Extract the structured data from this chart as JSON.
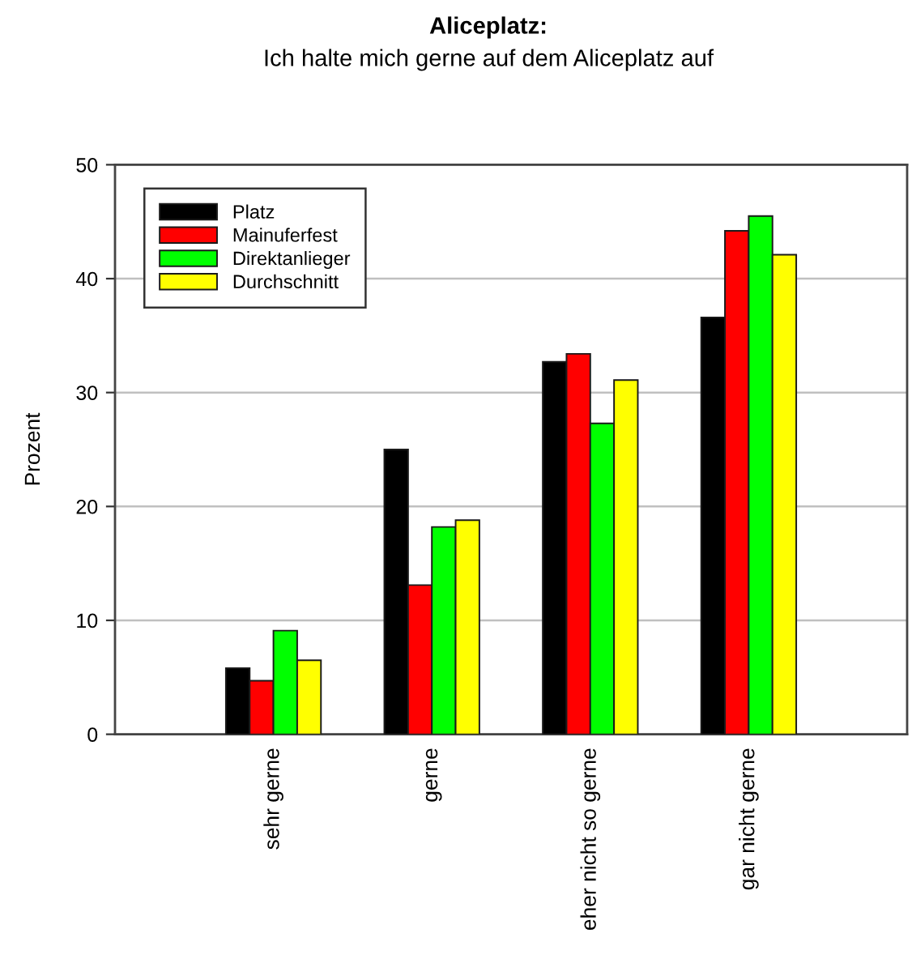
{
  "chart_data": {
    "type": "bar",
    "title": "Aliceplatz:",
    "subtitle": "Ich halte mich gerne auf dem Aliceplatz auf",
    "ylabel": "Prozent",
    "categories": [
      "sehr gerne",
      "gerne",
      "eher nicht so gerne",
      "gar nicht gerne"
    ],
    "series": [
      {
        "name": "Platz",
        "color": "#000000",
        "values": [
          5.8,
          25.0,
          32.7,
          36.6
        ]
      },
      {
        "name": "Mainuferfest",
        "color": "#ff0000",
        "values": [
          4.7,
          13.1,
          33.4,
          44.2
        ]
      },
      {
        "name": "Direktanlieger",
        "color": "#00ff00",
        "values": [
          9.1,
          18.2,
          27.3,
          45.5
        ]
      },
      {
        "name": "Durchschnitt",
        "color": "#ffff00",
        "values": [
          6.5,
          18.8,
          31.1,
          42.1
        ]
      }
    ],
    "ylim": [
      0,
      50
    ],
    "yticks": [
      0,
      10,
      20,
      30,
      40,
      50
    ],
    "grid": "y",
    "legend": "top left"
  }
}
